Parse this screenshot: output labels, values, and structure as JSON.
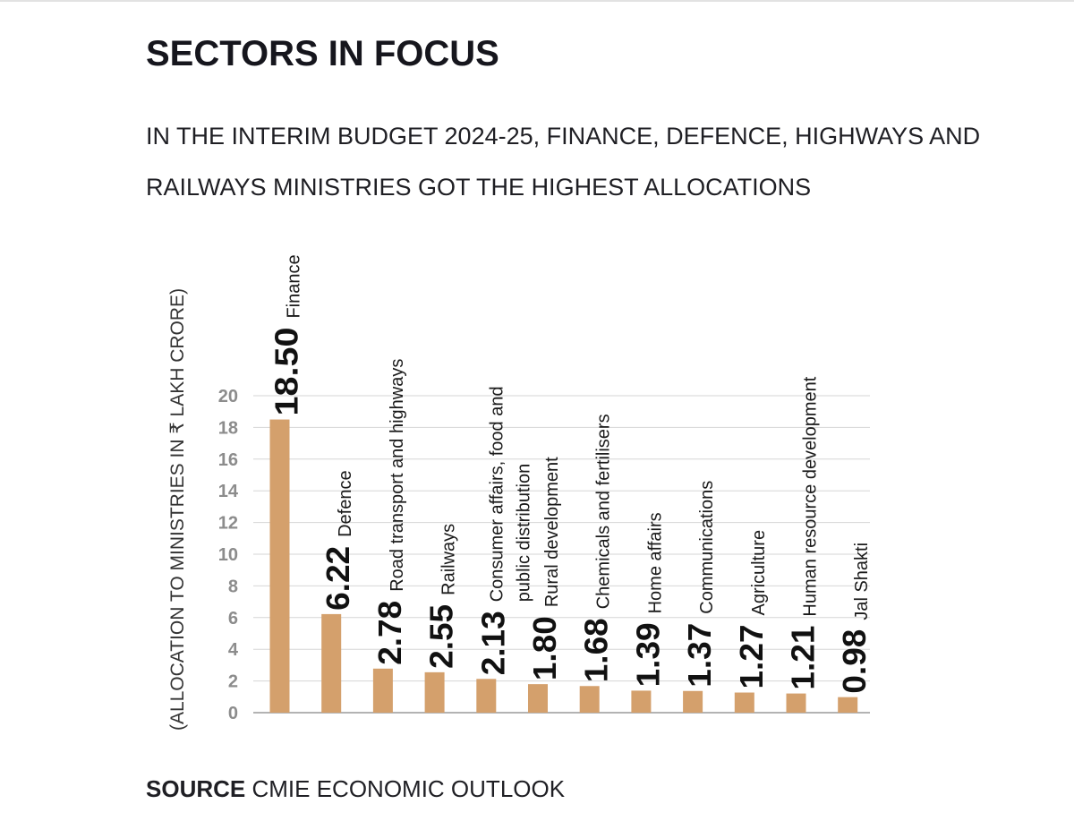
{
  "header": {
    "title": "SECTORS IN FOCUS",
    "subtitle": "IN THE INTERIM BUDGET 2024-25, FINANCE, DEFENCE, HIGHWAYS AND RAILWAYS MINISTRIES GOT THE HIGHEST ALLOCATIONS"
  },
  "chart_data": {
    "type": "bar",
    "title": "SECTORS IN FOCUS",
    "ylabel": "(ALLOCATION TO MINISTRIES IN ₹ LAKH CRORE)",
    "xlabel": "",
    "ylim": [
      0,
      20
    ],
    "yticks": [
      0,
      2,
      4,
      6,
      8,
      10,
      12,
      14,
      16,
      18,
      20
    ],
    "grid": true,
    "bar_color": "#d4a06c",
    "categories": [
      [
        "Finance"
      ],
      [
        "Defence"
      ],
      [
        "Road transport and highways"
      ],
      [
        "Railways"
      ],
      [
        "Consumer affairs, food and",
        "public distribution"
      ],
      [
        "Rural development"
      ],
      [
        "Chemicals and fertilisers"
      ],
      [
        "Home affairs"
      ],
      [
        "Communications"
      ],
      [
        "Agriculture"
      ],
      [
        "Human resource development"
      ],
      [
        "Jal Shakti"
      ]
    ],
    "values": [
      18.5,
      6.22,
      2.78,
      2.55,
      2.13,
      1.8,
      1.68,
      1.39,
      1.37,
      1.27,
      1.21,
      0.98
    ],
    "value_labels": [
      "18.50",
      "6.22",
      "2.78",
      "2.55",
      "2.13",
      "1.80",
      "1.68",
      "1.39",
      "1.37",
      "1.27",
      "1.21",
      "0.98"
    ]
  },
  "footer": {
    "source_label": "SOURCE",
    "source_text": "CMIE ECONOMIC OUTLOOK"
  }
}
